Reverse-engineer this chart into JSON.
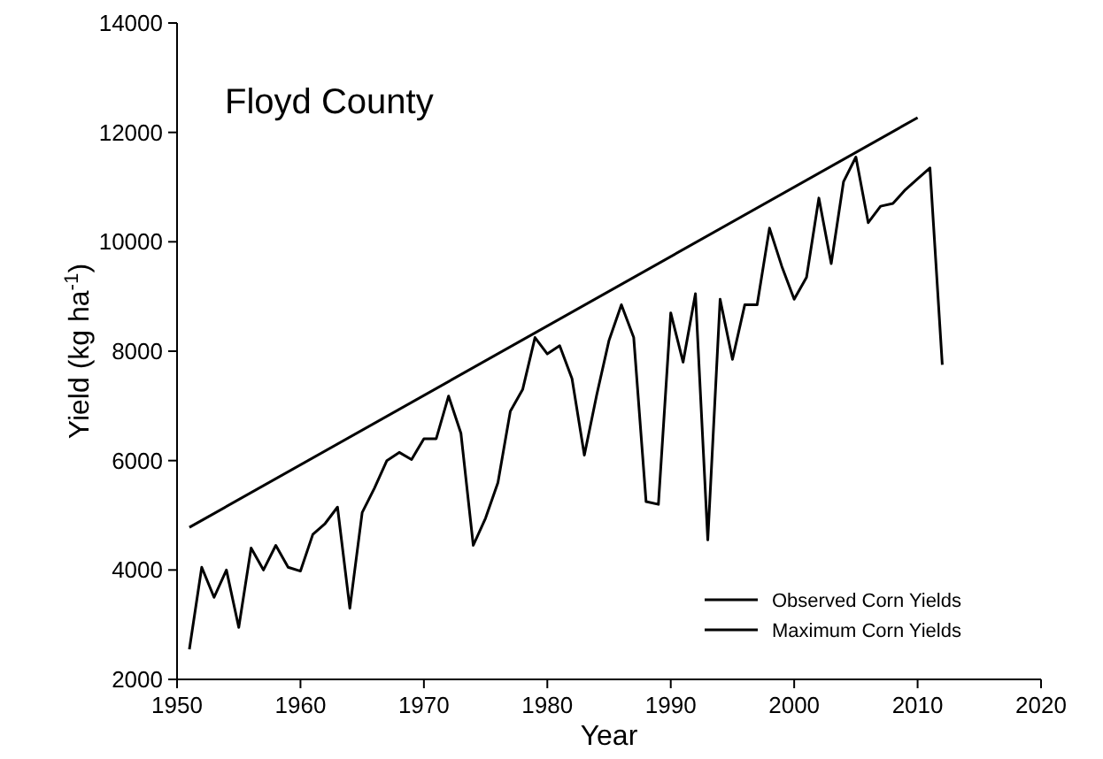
{
  "chart_data": {
    "type": "line",
    "title": "Floyd County",
    "xlabel": "Year",
    "ylabel": "Yield (kg ha$^{-1}$)",
    "xlim": [
      1950,
      2020
    ],
    "xticks": [
      1950,
      1960,
      1970,
      1980,
      1990,
      2000,
      2010,
      2020
    ],
    "ylim": [
      2000,
      14000
    ],
    "yticks": [
      2000,
      4000,
      6000,
      8000,
      10000,
      12000,
      14000
    ],
    "grid": false,
    "legend": "bottom right",
    "marker": "none",
    "line_style": "solid",
    "series": [
      {
        "name": "Observed Corn Yields",
        "color": "#000000",
        "x": [
          1951,
          1952,
          1953,
          1954,
          1955,
          1956,
          1957,
          1958,
          1959,
          1960,
          1961,
          1962,
          1963,
          1964,
          1965,
          1966,
          1967,
          1968,
          1969,
          1970,
          1971,
          1972,
          1973,
          1974,
          1975,
          1976,
          1977,
          1978,
          1979,
          1980,
          1981,
          1982,
          1983,
          1984,
          1985,
          1986,
          1987,
          1988,
          1989,
          1990,
          1991,
          1992,
          1993,
          1994,
          1995,
          1996,
          1997,
          1998,
          1999,
          2000,
          2001,
          2002,
          2003,
          2004,
          2005,
          2006,
          2007,
          2008,
          2009,
          2010,
          2011,
          2012
        ],
        "values": [
          2550,
          4050,
          3500,
          4000,
          2950,
          4400,
          4000,
          4450,
          4050,
          3980,
          4650,
          4850,
          5150,
          3300,
          5050,
          5500,
          6000,
          6150,
          6020,
          6400,
          6400,
          7180,
          6500,
          4450,
          4950,
          5600,
          6900,
          7300,
          8250,
          7950,
          8100,
          7500,
          6100,
          7200,
          8200,
          8850,
          8250,
          5250,
          5200,
          8700,
          7800,
          9050,
          4550,
          8950,
          7850,
          8850,
          8850,
          10250,
          9550,
          8950,
          9350,
          10800,
          9600,
          11100,
          11550,
          10350,
          10650,
          10700,
          10950,
          11150,
          11350,
          7750
        ]
      },
      {
        "name": "Maximum Corn Yields",
        "color": "#000000",
        "x": [
          1951,
          2010
        ],
        "values": [
          4780,
          12270
        ]
      }
    ]
  }
}
